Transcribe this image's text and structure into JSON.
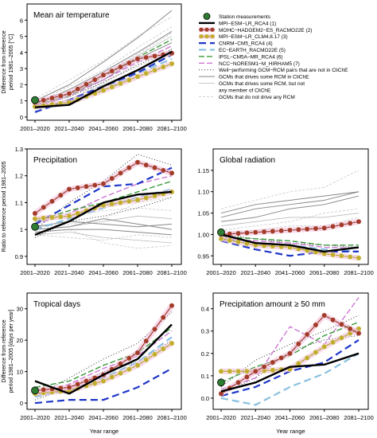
{
  "x_categories": [
    "2001–2020",
    "2021–2040",
    "2041–2060",
    "2061–2080",
    "2081–2100"
  ],
  "xlabel": "Year range",
  "legend": {
    "entries": [
      {
        "label": "Station measurements",
        "style": "station"
      },
      {
        "label": "MPI−ESM−LR_RCA4 (1)",
        "style": "s1"
      },
      {
        "label": "MOHC−HADGEM2−ES_RACMO22E (2)",
        "style": "s2"
      },
      {
        "label": "MPI−ESM−LR_CLM4.8.17 (3)",
        "style": "s3"
      },
      {
        "label": "CNRM−CM5_RCA4 (4)",
        "style": "s4"
      },
      {
        "label": "EC−EARTH_RACMO22E (5)",
        "style": "s5"
      },
      {
        "label": "IPSL−CM5A−MR_RCA4 (6)",
        "style": "s6"
      },
      {
        "label": "NCC−NORESM1−M_HIRHAM5 (7)",
        "style": "s7"
      },
      {
        "label": "Well−performing GCM−RCM pairs that are not in CliChE",
        "style": "well"
      },
      {
        "label": "GCMs that drives some RCM in CliChE",
        "style": "gcmA"
      },
      {
        "label": "GCMs that drives some RCM, but not",
        "style": "gcmB"
      },
      {
        "label": "any member of CliChE",
        "style": "none"
      },
      {
        "label": "GCMs that do not drive any RCM",
        "style": "gcmC"
      }
    ]
  },
  "styles": {
    "s1": {
      "color": "#000000",
      "dash": "",
      "width": 2.4
    },
    "s2": {
      "color": "#a33a2a",
      "dash": "",
      "width": 1.2,
      "marker": "#a33a2a",
      "halo": "#f0b8d8"
    },
    "s3": {
      "color": "#b6a02a",
      "dash": "",
      "width": 1.2,
      "marker": "#c2ad2e",
      "halo": "#f0b8d8"
    },
    "s4": {
      "color": "#1f37c8",
      "dash": "9,5",
      "width": 2.2
    },
    "s5": {
      "color": "#89c0e0",
      "dash": "9,5",
      "width": 2.2
    },
    "s6": {
      "color": "#3a9a3a",
      "dash": "7,3",
      "width": 1.4
    },
    "s7": {
      "color": "#cc79d4",
      "dash": "7,3",
      "width": 1.4
    },
    "well": {
      "color": "#333333",
      "dash": "1,2.5",
      "width": 1.0
    },
    "gcmA": {
      "color": "#888888",
      "dash": "",
      "width": 1.0
    },
    "gcmB": {
      "color": "#bbbbbb",
      "dash": "",
      "width": 0.8
    },
    "gcmC": {
      "color": "#c8c8c8",
      "dash": "3,2",
      "width": 0.8
    },
    "station": {
      "color": "#2e7d32"
    }
  },
  "chart_data": [
    {
      "type": "line",
      "title": "Mean air temperature",
      "ylabel_lines": [
        "Difference from reference",
        "period 1981–2005 [°C]"
      ],
      "ylim": [
        -0.2,
        7.0
      ],
      "yticks": [
        0,
        1,
        2,
        3,
        4,
        5,
        6
      ],
      "ytick_labels": [
        "0",
        "1",
        "2",
        "3",
        "4",
        "5",
        "6"
      ],
      "station": 1.05,
      "series": [
        {
          "style": "s1",
          "values": [
            0.6,
            0.75,
            1.9,
            2.9,
            4.05
          ]
        },
        {
          "style": "s2",
          "values": [
            0.9,
            1.45,
            2.6,
            3.6,
            3.95
          ]
        },
        {
          "style": "s3",
          "values": [
            0.65,
            0.9,
            1.65,
            2.5,
            3.3
          ]
        },
        {
          "style": "s4",
          "values": [
            0.3,
            1.05,
            1.9,
            2.75,
            3.85
          ]
        },
        {
          "style": "s5",
          "values": [
            0.55,
            1.0,
            1.7,
            2.7,
            3.6
          ]
        },
        {
          "style": "s6",
          "values": [
            0.8,
            1.3,
            2.5,
            3.7,
            4.8
          ]
        },
        {
          "style": "s7",
          "values": [
            0.6,
            1.3,
            2.3,
            3.4,
            4.4
          ]
        },
        {
          "style": "well",
          "values": [
            0.7,
            1.25,
            2.15,
            3.2,
            4.2
          ]
        },
        {
          "style": "gcmA",
          "values": [
            1.0,
            2.0,
            3.4,
            4.9,
            6.6
          ]
        },
        {
          "style": "gcmA",
          "values": [
            0.8,
            1.7,
            2.8,
            4.0,
            5.3
          ]
        },
        {
          "style": "gcmA",
          "values": [
            0.7,
            1.4,
            2.3,
            3.6,
            4.6
          ]
        },
        {
          "style": "gcmB",
          "values": [
            0.9,
            1.5,
            2.6,
            3.8,
            5.0
          ]
        },
        {
          "style": "gcmB",
          "values": [
            0.5,
            1.1,
            2.0,
            2.9,
            3.9
          ]
        },
        {
          "style": "gcmC",
          "values": [
            1.1,
            2.3,
            3.5,
            5.0,
            6.2
          ]
        },
        {
          "style": "gcmC",
          "values": [
            0.8,
            1.9,
            2.9,
            4.3,
            5.6
          ]
        },
        {
          "style": "gcmC",
          "values": [
            0.4,
            1.0,
            2.2,
            3.1,
            4.2
          ]
        },
        {
          "style": "gcmC",
          "values": [
            0.6,
            1.3,
            2.1,
            3.3,
            4.4
          ]
        },
        {
          "style": "gcmC",
          "values": [
            0.9,
            1.6,
            2.7,
            3.9,
            5.2
          ]
        }
      ]
    },
    {
      "type": "line",
      "title": "Precipitation",
      "ylabel_lines": [
        "Ratio to reference period 1981–2005"
      ],
      "ylim": [
        0.87,
        1.3
      ],
      "yticks": [
        0.9,
        1.0,
        1.1,
        1.2,
        1.3
      ],
      "ytick_labels": [
        "0.9",
        "1",
        "1.1",
        "1.2",
        "1.3"
      ],
      "station": 1.01,
      "series": [
        {
          "style": "s1",
          "values": [
            0.98,
            1.03,
            1.1,
            1.13,
            1.14
          ]
        },
        {
          "style": "s2",
          "values": [
            1.06,
            1.15,
            1.17,
            1.25,
            1.21
          ]
        },
        {
          "style": "s3",
          "values": [
            1.04,
            1.05,
            1.09,
            1.11,
            1.14
          ]
        },
        {
          "style": "s4",
          "values": [
            1.02,
            1.09,
            1.16,
            1.17,
            1.23
          ]
        },
        {
          "style": "s5",
          "values": [
            1.0,
            1.04,
            1.08,
            1.12,
            1.15
          ]
        },
        {
          "style": "s6",
          "values": [
            1.03,
            1.07,
            1.1,
            1.14,
            1.18
          ]
        },
        {
          "style": "s7",
          "values": [
            1.02,
            1.06,
            1.12,
            1.17,
            1.2
          ]
        },
        {
          "style": "well",
          "values": [
            1.0,
            1.1,
            1.18,
            1.28,
            1.24
          ]
        },
        {
          "style": "well",
          "values": [
            0.97,
            1.03,
            1.05,
            1.08,
            1.12
          ]
        },
        {
          "style": "gcmA",
          "values": [
            1.0,
            1.01,
            1.04,
            1.02,
            1.0
          ]
        },
        {
          "style": "gcmA",
          "values": [
            0.99,
            1.0,
            1.0,
            0.99,
            0.98
          ]
        },
        {
          "style": "gcmA",
          "values": [
            1.01,
            1.03,
            1.02,
            1.01,
            1.02
          ]
        },
        {
          "style": "gcmB",
          "values": [
            0.98,
            0.99,
            0.97,
            0.96,
            0.95
          ]
        },
        {
          "style": "gcmB",
          "values": [
            1.0,
            1.01,
            1.03,
            1.05,
            1.04
          ]
        },
        {
          "style": "gcmC",
          "values": [
            1.02,
            1.05,
            1.07,
            1.08,
            1.07
          ]
        },
        {
          "style": "gcmC",
          "values": [
            0.99,
            1.0,
            0.95,
            0.93,
            0.94
          ]
        },
        {
          "style": "gcmC",
          "values": [
            1.01,
            1.02,
            1.04,
            1.1,
            1.12
          ]
        },
        {
          "style": "gcmC",
          "values": [
            0.98,
            0.97,
            0.96,
            0.98,
            0.97
          ]
        }
      ]
    },
    {
      "type": "line",
      "title": "Global radiation",
      "ylabel_lines": [],
      "ylim": [
        0.93,
        1.2
      ],
      "yticks": [
        0.95,
        1.0,
        1.05,
        1.1,
        1.15
      ],
      "ytick_labels": [
        "0.95",
        "1.00",
        "1.05",
        "1.10",
        "1.15"
      ],
      "station": 1.005,
      "series": [
        {
          "style": "s1",
          "values": [
            1.0,
            0.98,
            0.975,
            0.96,
            0.97
          ]
        },
        {
          "style": "s2",
          "values": [
            1.0,
            1.005,
            1.01,
            1.015,
            1.03
          ]
        },
        {
          "style": "s3",
          "values": [
            0.99,
            0.975,
            0.97,
            0.955,
            0.945
          ]
        },
        {
          "style": "s4",
          "values": [
            0.985,
            0.965,
            0.95,
            0.96,
            0.96
          ]
        },
        {
          "style": "s5",
          "values": [
            0.99,
            0.98,
            0.975,
            0.965,
            0.96
          ]
        },
        {
          "style": "s6",
          "values": [
            0.995,
            0.99,
            0.985,
            0.975,
            0.975
          ]
        },
        {
          "style": "s7",
          "values": [
            0.99,
            0.985,
            0.98,
            0.97,
            0.968
          ]
        },
        {
          "style": "well",
          "values": [
            1.0,
            0.99,
            0.98,
            0.975,
            0.97
          ]
        },
        {
          "style": "gcmA",
          "values": [
            1.04,
            1.06,
            1.07,
            1.08,
            1.1
          ]
        },
        {
          "style": "gcmA",
          "values": [
            1.03,
            1.04,
            1.06,
            1.07,
            1.09
          ]
        },
        {
          "style": "gcmA",
          "values": [
            1.05,
            1.07,
            1.08,
            1.09,
            1.1
          ]
        },
        {
          "style": "gcmB",
          "values": [
            1.02,
            1.03,
            1.04,
            1.04,
            1.05
          ]
        },
        {
          "style": "gcmC",
          "values": [
            1.06,
            1.08,
            1.1,
            1.11,
            1.15
          ]
        },
        {
          "style": "gcmC",
          "values": [
            1.01,
            1.02,
            1.03,
            1.05,
            1.06
          ]
        },
        {
          "style": "gcmC",
          "values": [
            1.0,
            1.01,
            1.02,
            1.02,
            1.04
          ]
        }
      ]
    },
    {
      "type": "line",
      "title": "Tropical days",
      "ylabel_lines": [
        "Difference from reference",
        "period 1981–2005 [days per year]"
      ],
      "ylim": [
        -2,
        35
      ],
      "yticks": [
        0,
        10,
        20,
        30
      ],
      "ytick_labels": [
        "0",
        "10",
        "20",
        "30"
      ],
      "station": 4,
      "series": [
        {
          "style": "s1",
          "values": [
            7,
            3,
            9,
            14,
            25
          ]
        },
        {
          "style": "s2",
          "values": [
            4,
            5,
            9,
            16,
            31
          ]
        },
        {
          "style": "s3",
          "values": [
            3,
            4,
            7,
            12,
            19
          ]
        },
        {
          "style": "s4",
          "values": [
            0,
            1,
            1,
            5,
            11
          ]
        },
        {
          "style": "s5",
          "values": [
            2,
            4,
            8,
            13,
            21
          ]
        },
        {
          "style": "s6",
          "values": [
            5,
            7,
            12,
            16,
            24
          ]
        },
        {
          "style": "s7",
          "values": [
            3,
            6,
            11,
            15,
            23
          ]
        },
        {
          "style": "well",
          "values": [
            2,
            8,
            14,
            19,
            29
          ]
        },
        {
          "style": "well",
          "values": [
            1,
            5,
            10,
            13,
            20
          ]
        }
      ]
    },
    {
      "type": "line",
      "title": "Precipitation amount ≥ 50 mm",
      "ylabel_lines": [],
      "ylim": [
        -0.05,
        0.47
      ],
      "yticks": [
        0.0,
        0.1,
        0.2,
        0.3,
        0.4
      ],
      "ytick_labels": [
        "0.0",
        "0.1",
        "0.2",
        "0.3",
        "0.4"
      ],
      "station": 0.07,
      "series": [
        {
          "style": "s1",
          "values": [
            0.03,
            0.07,
            0.14,
            0.15,
            0.2
          ]
        },
        {
          "style": "s2",
          "values": [
            0.02,
            0.12,
            0.2,
            0.37,
            0.29
          ]
        },
        {
          "style": "s3",
          "values": [
            0.12,
            0.12,
            0.13,
            0.23,
            0.31
          ]
        },
        {
          "style": "s4",
          "values": [
            0.01,
            0.05,
            0.12,
            0.16,
            0.26
          ]
        },
        {
          "style": "s5",
          "values": [
            0.0,
            -0.03,
            0.05,
            0.11,
            0.2
          ]
        },
        {
          "style": "s6",
          "values": [
            0.07,
            0.14,
            0.19,
            0.28,
            0.34
          ]
        },
        {
          "style": "s7",
          "values": [
            0.04,
            0.09,
            0.32,
            0.24,
            0.45
          ]
        },
        {
          "style": "well",
          "values": [
            0.05,
            0.17,
            0.24,
            0.3,
            0.37
          ]
        },
        {
          "style": "well",
          "values": [
            0.02,
            0.09,
            0.21,
            0.26,
            0.28
          ]
        }
      ]
    }
  ]
}
